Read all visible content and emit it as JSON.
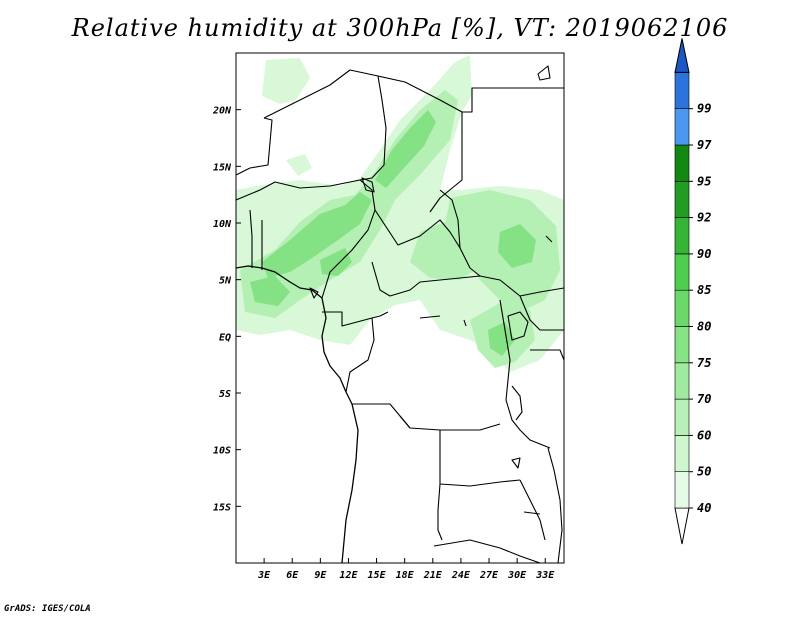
{
  "title": "Relative humidity at 300hPa [%], VT: 2019062106",
  "credit": "GrADS: IGES/COLA",
  "map": {
    "lon_range": [
      0,
      35
    ],
    "lat_range": [
      -20,
      25
    ],
    "lat_ticks": [
      {
        "value": 20,
        "label": "20N"
      },
      {
        "value": 15,
        "label": "15N"
      },
      {
        "value": 10,
        "label": "10N"
      },
      {
        "value": 5,
        "label": "5N"
      },
      {
        "value": 0,
        "label": "EQ"
      },
      {
        "value": -5,
        "label": "5S"
      },
      {
        "value": -10,
        "label": "10S"
      },
      {
        "value": -15,
        "label": "15S"
      }
    ],
    "lon_ticks": [
      {
        "value": 3,
        "label": "3E"
      },
      {
        "value": 6,
        "label": "6E"
      },
      {
        "value": 9,
        "label": "9E"
      },
      {
        "value": 12,
        "label": "12E"
      },
      {
        "value": 15,
        "label": "15E"
      },
      {
        "value": 18,
        "label": "18E"
      },
      {
        "value": 21,
        "label": "21E"
      },
      {
        "value": 24,
        "label": "24E"
      },
      {
        "value": 27,
        "label": "27E"
      },
      {
        "value": 30,
        "label": "30E"
      },
      {
        "value": 33,
        "label": "33E"
      }
    ]
  },
  "colorbar": {
    "levels": [
      {
        "label": "40",
        "color": "#e6fbe6"
      },
      {
        "label": "50",
        "color": "#d0f6d0"
      },
      {
        "label": "60",
        "color": "#b8f0b8"
      },
      {
        "label": "70",
        "color": "#a0eaa0"
      },
      {
        "label": "75",
        "color": "#86e386"
      },
      {
        "label": "80",
        "color": "#6ad96a"
      },
      {
        "label": "85",
        "color": "#4fcd4f"
      },
      {
        "label": "90",
        "color": "#36b436"
      },
      {
        "label": "92",
        "color": "#229c22"
      },
      {
        "label": "95",
        "color": "#128812"
      },
      {
        "label": "97",
        "color": "#4a98f0"
      },
      {
        "label": "99",
        "color": "#2c74dc"
      }
    ],
    "top_color": "#1a58c4",
    "bottom_color": "#ffffff"
  }
}
